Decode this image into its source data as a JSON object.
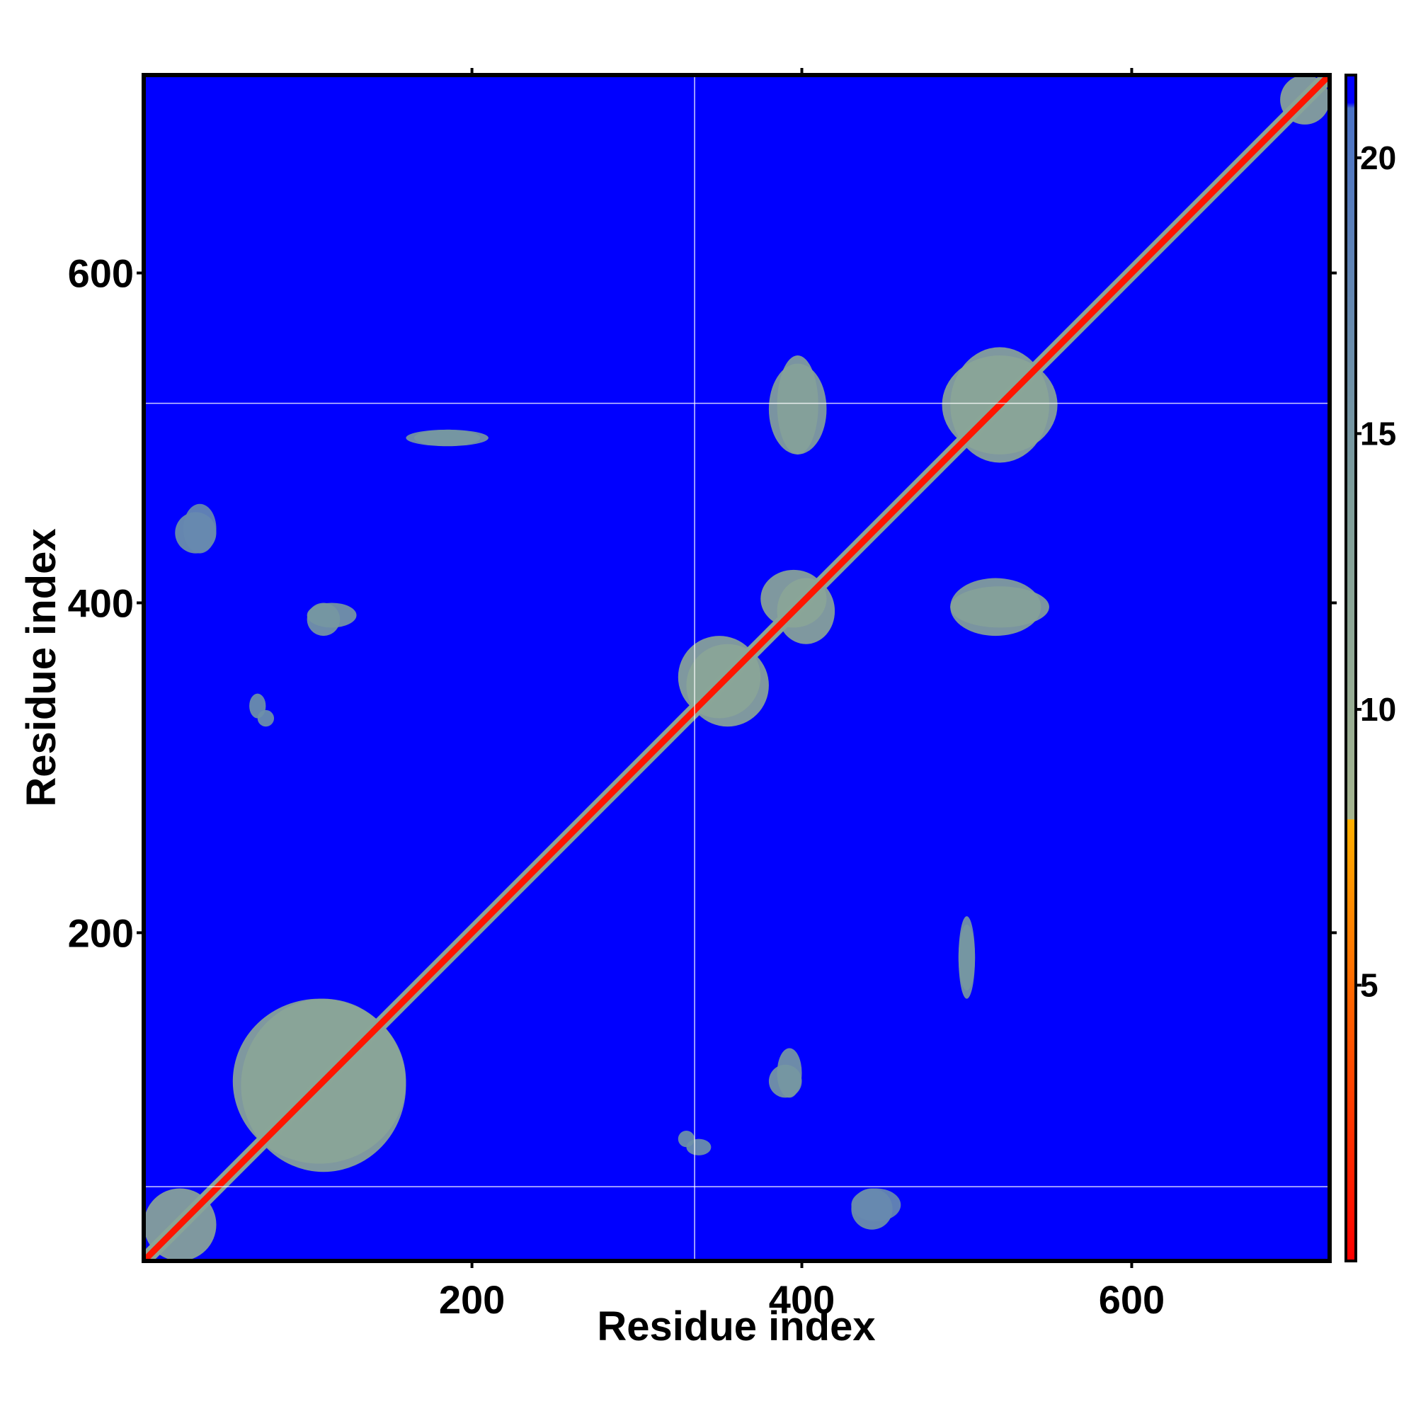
{
  "chart_data": {
    "type": "heatmap",
    "title": "",
    "xlabel": "Residue index",
    "ylabel": "Residue index",
    "xlim": [
      1,
      720
    ],
    "ylim": [
      1,
      720
    ],
    "x_ticks": [
      200,
      400,
      600
    ],
    "y_ticks": [
      200,
      400,
      600
    ],
    "grid": true,
    "reference_lines": {
      "x": [
        335
      ],
      "y": [
        46,
        521
      ]
    },
    "colorbar": {
      "range": [
        0,
        21.5
      ],
      "ticks": [
        5,
        10,
        15,
        20
      ],
      "stops": [
        {
          "value": 0,
          "color": "#ff0000"
        },
        {
          "value": 5,
          "color": "#ff6a00"
        },
        {
          "value": 8,
          "color": "#ffb000"
        },
        {
          "value": 8.01,
          "color": "#a5b58f"
        },
        {
          "value": 14,
          "color": "#7d9d9b"
        },
        {
          "value": 20.9,
          "color": "#4a72c8"
        },
        {
          "value": 21.0,
          "color": "#0000ff"
        },
        {
          "value": 21.5,
          "color": "#0000ff"
        }
      ]
    },
    "background_value": 21.5,
    "diagonal": {
      "core_value": 1,
      "band_value": 12,
      "width_residues": 6
    },
    "regions": [
      {
        "x": [
          1,
          45
        ],
        "y": [
          1,
          45
        ],
        "value": 12
      },
      {
        "x": [
          55,
          160
        ],
        "y": [
          60,
          160
        ],
        "value": 12
      },
      {
        "x": [
          330,
          380
        ],
        "y": [
          325,
          375
        ],
        "value": 12
      },
      {
        "x": [
          375,
          415
        ],
        "y": [
          385,
          420
        ],
        "value": 12
      },
      {
        "x": [
          485,
          555
        ],
        "y": [
          490,
          550
        ],
        "value": 12
      },
      {
        "x": [
          380,
          415
        ],
        "y": [
          490,
          545
        ],
        "value": 13
      },
      {
        "x": [
          490,
          550
        ],
        "y": [
          385,
          410
        ],
        "value": 13
      },
      {
        "x": [
          165,
          205
        ],
        "y": [
          495,
          505
        ],
        "value": 15
      },
      {
        "x": [
          495,
          505
        ],
        "y": [
          160,
          210
        ],
        "value": 15
      },
      {
        "x": [
          100,
          130
        ],
        "y": [
          385,
          400
        ],
        "value": 15
      },
      {
        "x": [
          380,
          400
        ],
        "y": [
          100,
          120
        ],
        "value": 15
      },
      {
        "x": [
          20,
          45
        ],
        "y": [
          430,
          455
        ],
        "value": 16
      },
      {
        "x": [
          330,
          345
        ],
        "y": [
          65,
          75
        ],
        "value": 16
      },
      {
        "x": [
          70,
          80
        ],
        "y": [
          325,
          335
        ],
        "value": 16
      },
      {
        "x": [
          430,
          460
        ],
        "y": [
          25,
          45
        ],
        "value": 17
      },
      {
        "x": [
          690,
          720
        ],
        "y": [
          690,
          720
        ],
        "value": 12
      }
    ]
  }
}
